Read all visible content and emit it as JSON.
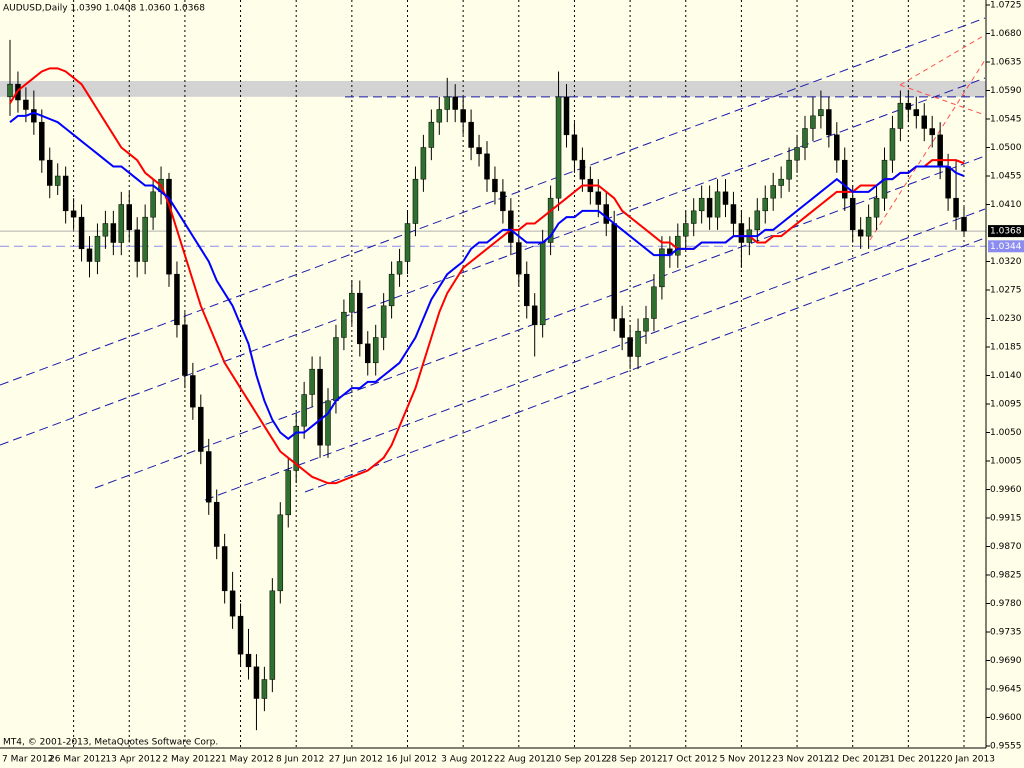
{
  "chart_data": {
    "type": "candlestick",
    "header": "AUDUSD,Daily  1.0390 1.0408 1.0360 1.0368",
    "footer": "MT4, © 2001-2013, MetaQuotes Software Corp.",
    "up_color": "#2f6f2f",
    "down_color": "#000000",
    "wick_color": "#000000",
    "ylim": [
      0.9555,
      1.0725
    ],
    "yticks": [
      1.0725,
      {
        "value": 1.068,
        "label": "1.0680"
      },
      1.0635,
      {
        "value": 1.059,
        "label": "1.0590"
      },
      1.0545,
      {
        "value": 1.05,
        "label": "1.0500"
      },
      1.0455,
      {
        "value": 1.041,
        "label": "1.0410"
      },
      {
        "value": 1.032,
        "label": "1.0320"
      },
      1.0275,
      {
        "value": 1.023,
        "label": "1.0230"
      },
      1.0185,
      {
        "value": 1.014,
        "label": "1.0140"
      },
      1.0095,
      {
        "value": 1.005,
        "label": "1.0050"
      },
      1.0005,
      {
        "value": 0.996,
        "label": "0.9960"
      },
      0.9915,
      {
        "value": 0.987,
        "label": "0.9870"
      },
      0.9825,
      {
        "value": 0.978,
        "label": "0.9780"
      },
      0.9735,
      {
        "value": 0.969,
        "label": "0.9690"
      },
      0.9645,
      {
        "value": 0.96,
        "label": "0.9600"
      },
      0.9555
    ],
    "categories": [
      "7 Mar 2012",
      null,
      null,
      null,
      null,
      null,
      null,
      null,
      "26 Mar 2012",
      null,
      null,
      null,
      null,
      null,
      null,
      "13 Apr 2012",
      null,
      null,
      null,
      null,
      null,
      null,
      "2 May 2012",
      null,
      null,
      null,
      null,
      null,
      null,
      "21 May 2012",
      null,
      null,
      null,
      null,
      null,
      null,
      "8 Jun 2012",
      null,
      null,
      null,
      null,
      null,
      null,
      "27 Jun 2012",
      null,
      null,
      null,
      null,
      null,
      null,
      "16 Jul 2012",
      null,
      null,
      null,
      null,
      null,
      null,
      "3 Aug 2012",
      null,
      null,
      null,
      null,
      null,
      null,
      "22 Aug 2012",
      null,
      null,
      null,
      null,
      null,
      null,
      "10 Sep 2012",
      null,
      null,
      null,
      null,
      null,
      null,
      "28 Sep 2012",
      null,
      null,
      null,
      null,
      null,
      null,
      "17 Oct 2012",
      null,
      null,
      null,
      null,
      null,
      null,
      "5 Nov 2012",
      null,
      null,
      null,
      null,
      null,
      null,
      "23 Nov 2012",
      null,
      null,
      null,
      null,
      null,
      null,
      "12 Dec 2012",
      null,
      null,
      null,
      null,
      null,
      null,
      "31 Dec 2012",
      null,
      null,
      null,
      null,
      null,
      null,
      "20 Jan 2013"
    ],
    "ohlc": [
      [
        1.058,
        1.067,
        1.055,
        1.06
      ],
      [
        1.06,
        1.062,
        1.0555,
        1.0575
      ],
      [
        1.0575,
        1.0595,
        1.054,
        1.056
      ],
      [
        1.056,
        1.059,
        1.052,
        1.054
      ],
      [
        1.054,
        1.056,
        1.046,
        1.048
      ],
      [
        1.048,
        1.05,
        1.042,
        1.044
      ],
      [
        1.044,
        1.0475,
        1.0425,
        1.0455
      ],
      [
        1.0455,
        1.047,
        1.038,
        1.04
      ],
      [
        1.04,
        1.042,
        1.037,
        1.039
      ],
      [
        1.039,
        1.041,
        1.032,
        1.034
      ],
      [
        1.034,
        1.036,
        1.0295,
        1.032
      ],
      [
        1.032,
        1.038,
        1.03,
        1.036
      ],
      [
        1.036,
        1.04,
        1.034,
        1.038
      ],
      [
        1.038,
        1.04,
        1.033,
        1.035
      ],
      [
        1.035,
        1.043,
        1.033,
        1.041
      ],
      [
        1.041,
        1.043,
        1.035,
        1.037
      ],
      [
        1.037,
        1.039,
        1.0295,
        1.032
      ],
      [
        1.032,
        1.041,
        1.03,
        1.039
      ],
      [
        1.039,
        1.045,
        1.037,
        1.043
      ],
      [
        1.043,
        1.047,
        1.041,
        1.045
      ],
      [
        1.045,
        1.046,
        1.028,
        1.03
      ],
      [
        1.03,
        1.032,
        1.02,
        1.022
      ],
      [
        1.022,
        1.024,
        1.012,
        1.014
      ],
      [
        1.014,
        1.016,
        1.007,
        1.009
      ],
      [
        1.009,
        1.011,
        1.0,
        1.002
      ],
      [
        1.002,
        1.004,
        0.992,
        0.994
      ],
      [
        0.994,
        0.996,
        0.985,
        0.987
      ],
      [
        0.987,
        0.989,
        0.978,
        0.98
      ],
      [
        0.98,
        0.983,
        0.974,
        0.976
      ],
      [
        0.976,
        0.978,
        0.968,
        0.97
      ],
      [
        0.97,
        0.974,
        0.966,
        0.968
      ],
      [
        0.968,
        0.97,
        0.958,
        0.963
      ],
      [
        0.963,
        0.968,
        0.961,
        0.966
      ],
      [
        0.966,
        0.982,
        0.964,
        0.98
      ],
      [
        0.98,
        0.994,
        0.978,
        0.992
      ],
      [
        0.992,
        1.001,
        0.99,
        0.999
      ],
      [
        0.999,
        1.008,
        0.997,
        1.006
      ],
      [
        1.006,
        1.013,
        1.004,
        1.011
      ],
      [
        1.011,
        1.017,
        1.009,
        1.015
      ],
      [
        1.015,
        1.017,
        1.001,
        1.003
      ],
      [
        1.003,
        1.012,
        1.001,
        1.01
      ],
      [
        1.01,
        1.022,
        1.008,
        1.02
      ],
      [
        1.02,
        1.026,
        1.018,
        1.024
      ],
      [
        1.024,
        1.029,
        1.022,
        1.027
      ],
      [
        1.027,
        1.029,
        1.017,
        1.019
      ],
      [
        1.019,
        1.021,
        1.014,
        1.016
      ],
      [
        1.016,
        1.022,
        1.014,
        1.02
      ],
      [
        1.02,
        1.027,
        1.018,
        1.025
      ],
      [
        1.025,
        1.032,
        1.023,
        1.03
      ],
      [
        1.03,
        1.034,
        1.028,
        1.032
      ],
      [
        1.032,
        1.04,
        1.03,
        1.038
      ],
      [
        1.038,
        1.047,
        1.036,
        1.045
      ],
      [
        1.045,
        1.052,
        1.043,
        1.05
      ],
      [
        1.05,
        1.056,
        1.048,
        1.054
      ],
      [
        1.054,
        1.058,
        1.052,
        1.056
      ],
      [
        1.056,
        1.061,
        1.054,
        1.058
      ],
      [
        1.058,
        1.06,
        1.054,
        1.056
      ],
      [
        1.056,
        1.058,
        1.052,
        1.054
      ],
      [
        1.054,
        1.056,
        1.048,
        1.05
      ],
      [
        1.05,
        1.052,
        1.047,
        1.049
      ],
      [
        1.049,
        1.051,
        1.043,
        1.045
      ],
      [
        1.045,
        1.047,
        1.041,
        1.043
      ],
      [
        1.043,
        1.045,
        1.038,
        1.04
      ],
      [
        1.04,
        1.042,
        1.033,
        1.035
      ],
      [
        1.035,
        1.037,
        1.028,
        1.03
      ],
      [
        1.03,
        1.032,
        1.023,
        1.025
      ],
      [
        1.025,
        1.027,
        1.017,
        1.022
      ],
      [
        1.022,
        1.037,
        1.02,
        1.035
      ],
      [
        1.035,
        1.044,
        1.033,
        1.042
      ],
      [
        1.042,
        1.062,
        1.04,
        1.058
      ],
      [
        1.058,
        1.06,
        1.05,
        1.052
      ],
      [
        1.052,
        1.054,
        1.046,
        1.048
      ],
      [
        1.048,
        1.05,
        1.043,
        1.045
      ],
      [
        1.045,
        1.047,
        1.041,
        1.043
      ],
      [
        1.043,
        1.045,
        1.039,
        1.041
      ],
      [
        1.041,
        1.043,
        1.036,
        1.038
      ],
      [
        1.038,
        1.04,
        1.021,
        1.023
      ],
      [
        1.023,
        1.025,
        1.018,
        1.02
      ],
      [
        1.02,
        1.022,
        1.015,
        1.017
      ],
      [
        1.017,
        1.023,
        1.015,
        1.021
      ],
      [
        1.021,
        1.025,
        1.019,
        1.023
      ],
      [
        1.023,
        1.03,
        1.021,
        1.028
      ],
      [
        1.028,
        1.036,
        1.026,
        1.034
      ],
      [
        1.034,
        1.036,
        1.031,
        1.033
      ],
      [
        1.033,
        1.038,
        1.031,
        1.036
      ],
      [
        1.036,
        1.04,
        1.034,
        1.038
      ],
      [
        1.038,
        1.042,
        1.036,
        1.04
      ],
      [
        1.04,
        1.044,
        1.038,
        1.042
      ],
      [
        1.042,
        1.044,
        1.037,
        1.039
      ],
      [
        1.039,
        1.045,
        1.037,
        1.043
      ],
      [
        1.043,
        1.045,
        1.039,
        1.041
      ],
      [
        1.041,
        1.043,
        1.036,
        1.038
      ],
      [
        1.038,
        1.04,
        1.031,
        1.035
      ],
      [
        1.035,
        1.039,
        1.033,
        1.037
      ],
      [
        1.037,
        1.042,
        1.035,
        1.04
      ],
      [
        1.04,
        1.044,
        1.038,
        1.042
      ],
      [
        1.042,
        1.046,
        1.04,
        1.044
      ],
      [
        1.044,
        1.047,
        1.042,
        1.045
      ],
      [
        1.045,
        1.05,
        1.043,
        1.048
      ],
      [
        1.048,
        1.052,
        1.046,
        1.05
      ],
      [
        1.05,
        1.055,
        1.048,
        1.053
      ],
      [
        1.053,
        1.058,
        1.051,
        1.055
      ],
      [
        1.055,
        1.059,
        1.053,
        1.056
      ],
      [
        1.056,
        1.058,
        1.05,
        1.052
      ],
      [
        1.052,
        1.054,
        1.046,
        1.048
      ],
      [
        1.048,
        1.05,
        1.04,
        1.042
      ],
      [
        1.042,
        1.044,
        1.035,
        1.037
      ],
      [
        1.037,
        1.039,
        1.034,
        1.036
      ],
      [
        1.036,
        1.041,
        1.034,
        1.039
      ],
      [
        1.039,
        1.044,
        1.037,
        1.042
      ],
      [
        1.042,
        1.05,
        1.04,
        1.048
      ],
      [
        1.048,
        1.055,
        1.046,
        1.053
      ],
      [
        1.053,
        1.059,
        1.051,
        1.057
      ],
      [
        1.057,
        1.059,
        1.054,
        1.056
      ],
      [
        1.056,
        1.058,
        1.053,
        1.055
      ],
      [
        1.055,
        1.057,
        1.051,
        1.053
      ],
      [
        1.053,
        1.055,
        1.05,
        1.052
      ],
      [
        1.052,
        1.054,
        1.045,
        1.047
      ],
      [
        1.047,
        1.049,
        1.04,
        1.042
      ],
      [
        1.042,
        1.048,
        1.037,
        1.039
      ],
      [
        1.039,
        1.0408,
        1.036,
        1.0368
      ]
    ],
    "series": [
      {
        "color": "#ff0000",
        "values": [
          1.057,
          1.059,
          1.06,
          1.061,
          1.062,
          1.0625,
          1.0625,
          1.062,
          1.061,
          1.06,
          1.058,
          1.056,
          1.054,
          1.052,
          1.05,
          1.049,
          1.048,
          1.046,
          1.045,
          1.044,
          1.041,
          1.037,
          1.033,
          1.029,
          1.025,
          1.022,
          1.019,
          1.016,
          1.014,
          1.012,
          1.01,
          1.008,
          1.006,
          1.004,
          1.002,
          1.001,
          1.0,
          0.999,
          0.998,
          0.9975,
          0.997,
          0.997,
          0.9975,
          0.998,
          0.9985,
          0.999,
          1.0,
          1.001,
          1.003,
          1.006,
          1.009,
          1.012,
          1.016,
          1.02,
          1.024,
          1.027,
          1.029,
          1.031,
          1.032,
          1.033,
          1.034,
          1.035,
          1.036,
          1.037,
          1.037,
          1.038,
          1.038,
          1.039,
          1.04,
          1.041,
          1.042,
          1.043,
          1.044,
          1.044,
          1.044,
          1.043,
          1.042,
          1.04,
          1.039,
          1.038,
          1.037,
          1.036,
          1.035,
          1.035,
          1.034,
          1.034,
          1.034,
          1.035,
          1.035,
          1.035,
          1.035,
          1.036,
          1.036,
          1.036,
          1.035,
          1.035,
          1.036,
          1.036,
          1.037,
          1.038,
          1.039,
          1.04,
          1.041,
          1.042,
          1.043,
          1.043,
          1.043,
          1.044,
          1.044,
          1.044,
          1.045,
          1.045,
          1.046,
          1.046,
          1.047,
          1.047,
          1.048,
          1.048,
          1.048,
          1.048,
          1.0475
        ]
      },
      {
        "color": "#0000ff",
        "values": [
          1.054,
          1.055,
          1.055,
          1.0555,
          1.055,
          1.0545,
          1.054,
          1.053,
          1.052,
          1.051,
          1.05,
          1.049,
          1.048,
          1.047,
          1.047,
          1.046,
          1.045,
          1.044,
          1.044,
          1.043,
          1.042,
          1.04,
          1.038,
          1.036,
          1.034,
          1.032,
          1.029,
          1.027,
          1.025,
          1.022,
          1.019,
          1.014,
          1.01,
          1.007,
          1.005,
          1.004,
          1.005,
          1.005,
          1.006,
          1.007,
          1.008,
          1.01,
          1.011,
          1.012,
          1.012,
          1.013,
          1.013,
          1.014,
          1.015,
          1.016,
          1.018,
          1.02,
          1.023,
          1.026,
          1.028,
          1.03,
          1.031,
          1.032,
          1.034,
          1.035,
          1.035,
          1.036,
          1.037,
          1.037,
          1.036,
          1.035,
          1.035,
          1.035,
          1.036,
          1.038,
          1.039,
          1.039,
          1.04,
          1.04,
          1.04,
          1.039,
          1.038,
          1.037,
          1.036,
          1.035,
          1.034,
          1.033,
          1.033,
          1.033,
          1.034,
          1.034,
          1.034,
          1.035,
          1.035,
          1.035,
          1.035,
          1.036,
          1.036,
          1.036,
          1.036,
          1.037,
          1.037,
          1.038,
          1.039,
          1.04,
          1.041,
          1.042,
          1.043,
          1.044,
          1.045,
          1.044,
          1.043,
          1.043,
          1.043,
          1.044,
          1.045,
          1.045,
          1.046,
          1.046,
          1.047,
          1.047,
          1.047,
          1.047,
          1.047,
          1.046,
          1.0455
        ]
      }
    ],
    "zone": [
      1.058,
      1.0605
    ],
    "resistance": 1.058,
    "level": 1.0344,
    "price_labels": [
      {
        "value": 1.0368,
        "label": "1.0368",
        "color": "#000000"
      },
      {
        "value": 1.0344,
        "label": "1.0344",
        "color": "#8c8cf0"
      }
    ]
  }
}
